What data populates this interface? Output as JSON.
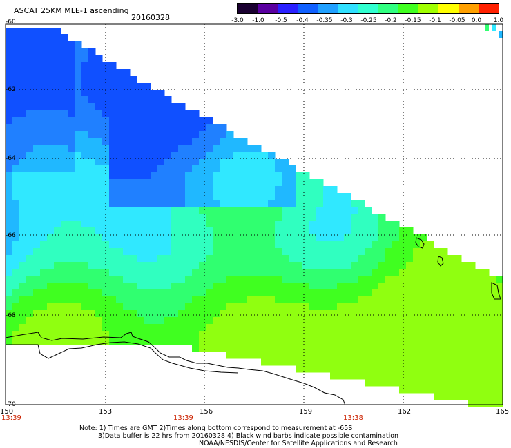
{
  "header": {
    "title": "ASCAT 25KM MLE-1 ascending",
    "date": "20160328"
  },
  "colorbar": {
    "labels": [
      "-3.0",
      "-1.0",
      "-0.5",
      "-0.4",
      "-0.35",
      "-0.3",
      "-0.25",
      "-0.2",
      "-0.15",
      "-0.1",
      "-0.05",
      "0.0",
      "1.0"
    ],
    "colors": [
      "#1a0030",
      "#5a00a0",
      "#2a20ff",
      "#1060ff",
      "#20a0ff",
      "#30e0ff",
      "#30ffd0",
      "#30ff80",
      "#40ff20",
      "#a0ff00",
      "#ffff00",
      "#ffa000",
      "#ff2000"
    ]
  },
  "map": {
    "lat_labels": [
      "-60",
      "-62",
      "-64",
      "-66",
      "-68",
      "-70"
    ],
    "lon_labels": [
      "150",
      "153",
      "156",
      "159",
      "162",
      "165"
    ],
    "times": [
      "13:39",
      "13:39",
      "13:38"
    ]
  },
  "notes": {
    "line1": "Note: 1) Times are GMT 2)Times along bottom correspond to measurement at -65S",
    "line2": "3)Data buffer is 22 hrs from 20160328 4) Black wind barbs indicate possible contamination",
    "line3": "NOAA/NESDIS/Center for Satellite Applications and Research"
  }
}
